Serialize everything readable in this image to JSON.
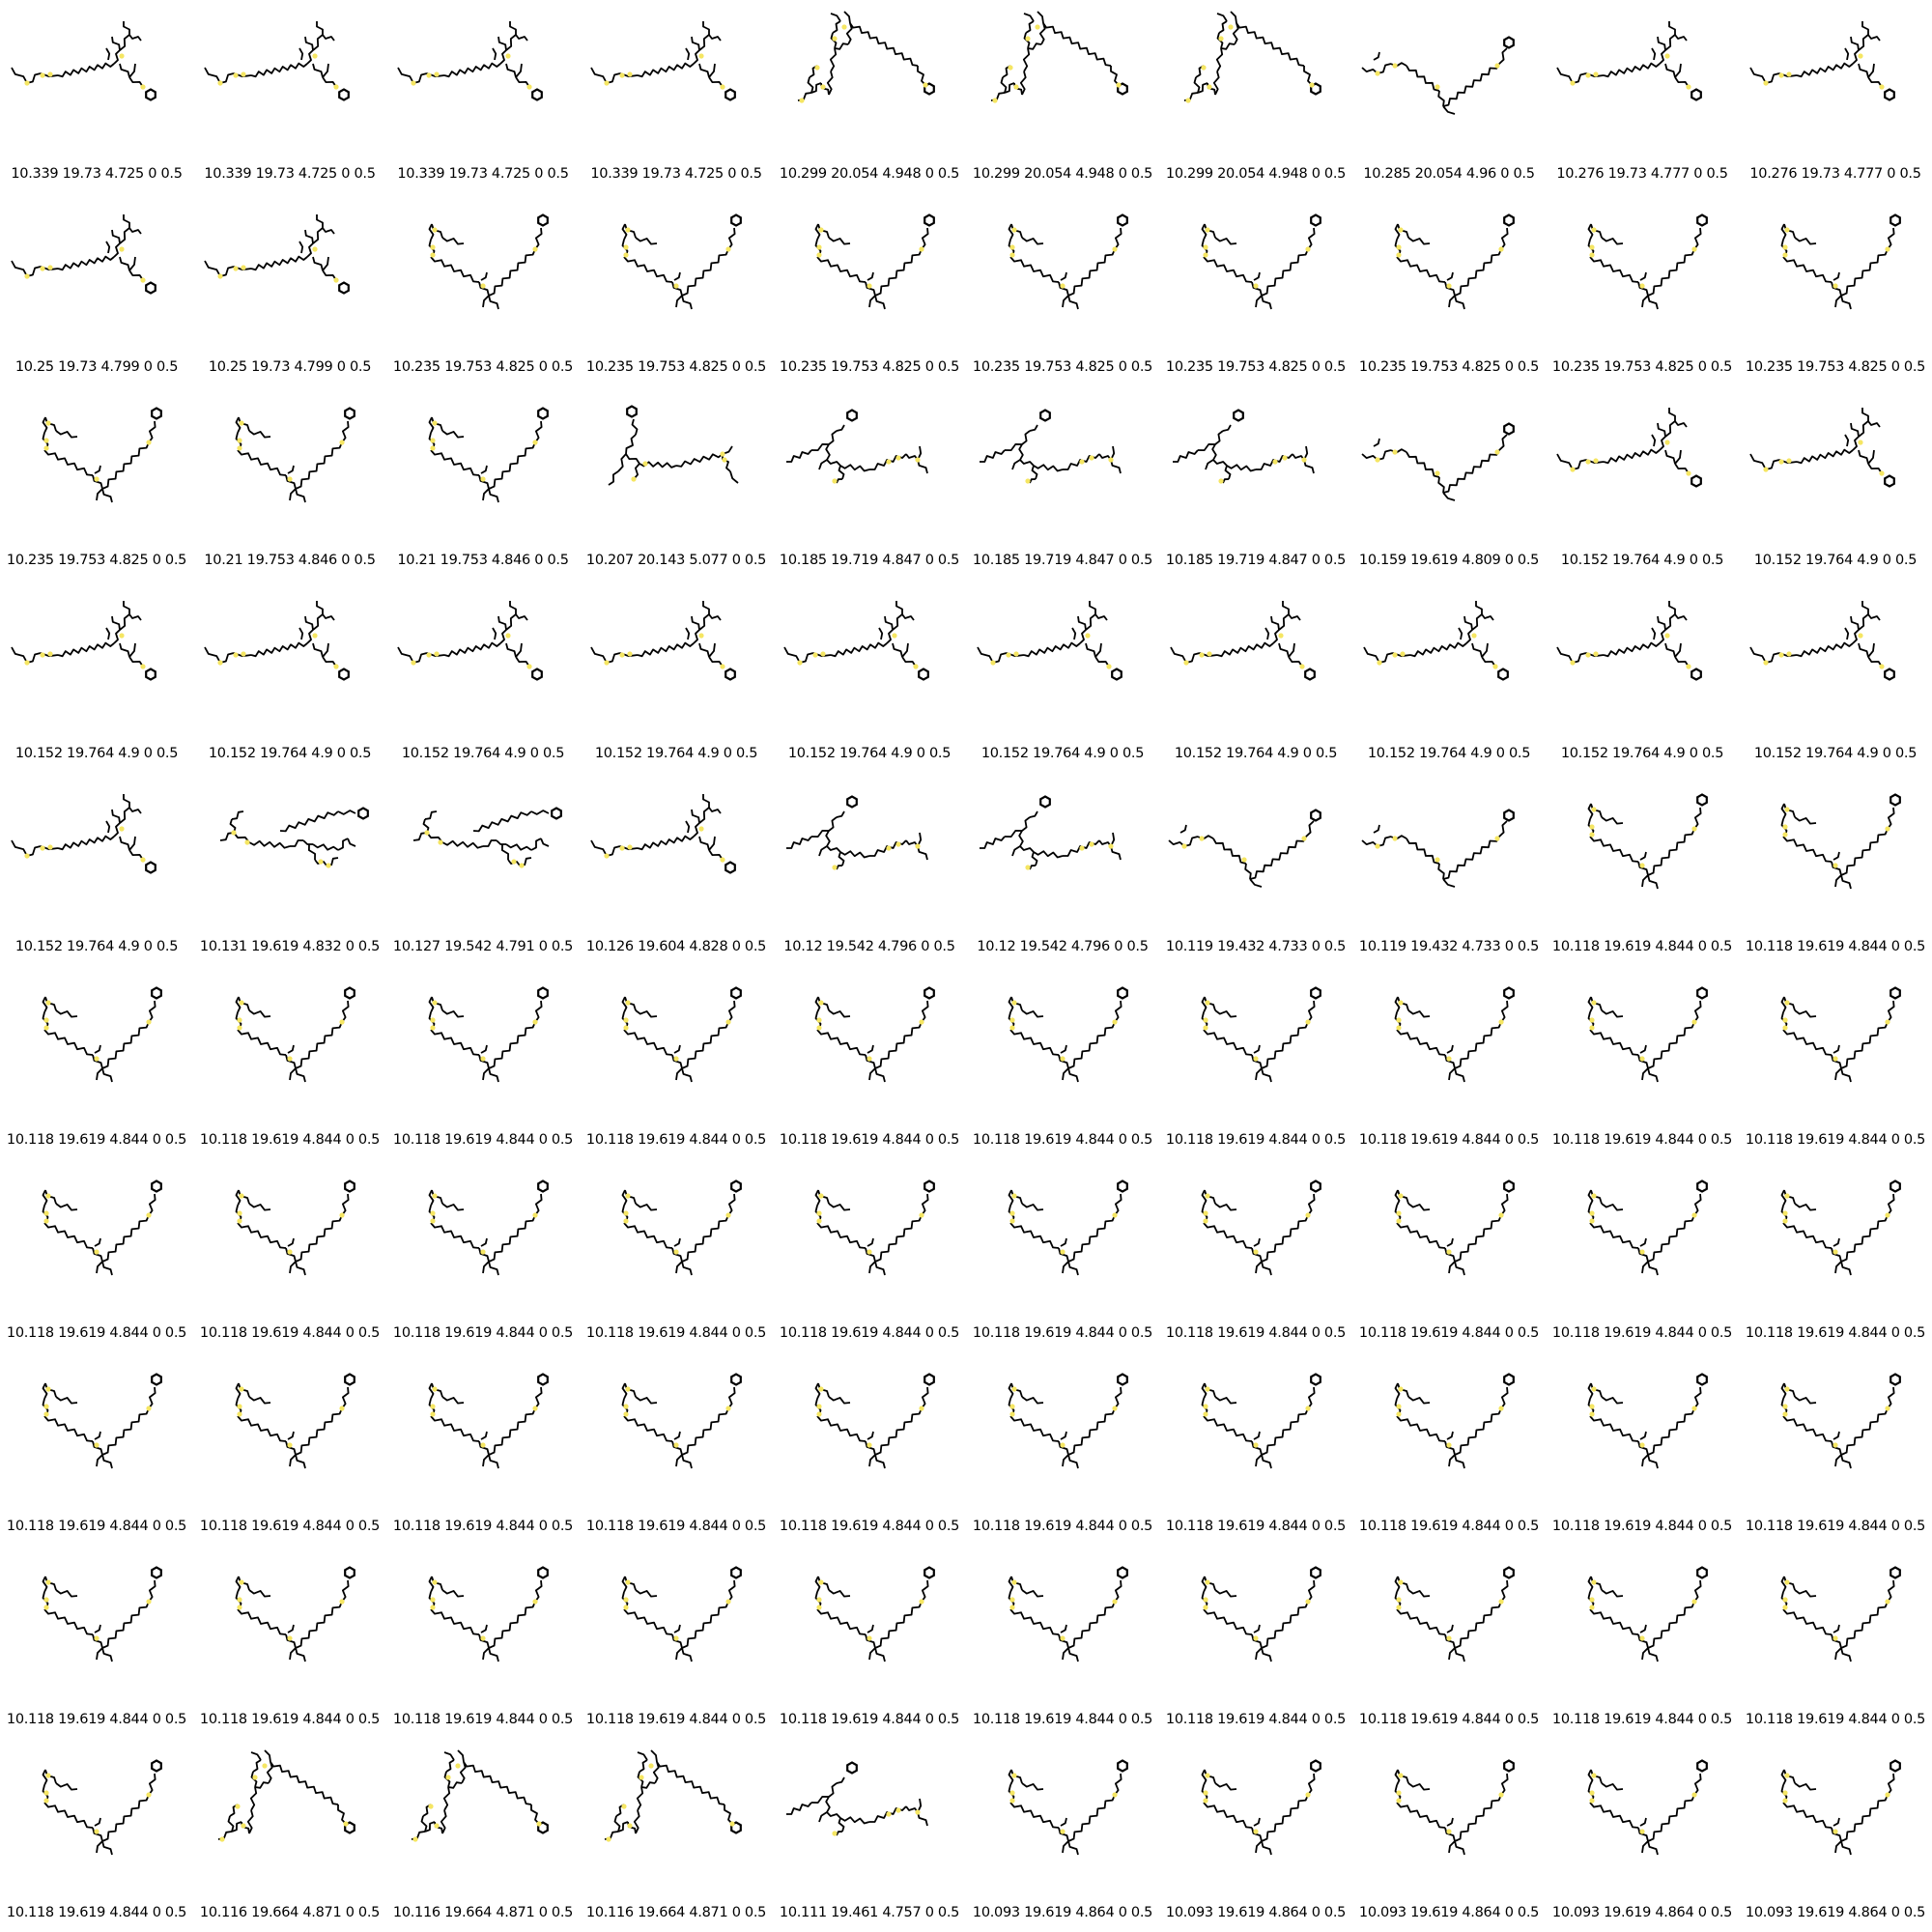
{
  "colors": {
    "bond": "#000000",
    "heteroatom": "#f5e663"
  },
  "items": [
    {
      "shape": "A",
      "label": "10.339 19.73 4.725 0 0.5"
    },
    {
      "shape": "A",
      "label": "10.339 19.73 4.725 0 0.5"
    },
    {
      "shape": "A",
      "label": "10.339 19.73 4.725 0 0.5"
    },
    {
      "shape": "A",
      "label": "10.339 19.73 4.725 0 0.5"
    },
    {
      "shape": "C",
      "label": "10.299 20.054 4.948 0 0.5"
    },
    {
      "shape": "C",
      "label": "10.299 20.054 4.948 0 0.5"
    },
    {
      "shape": "C",
      "label": "10.299 20.054 4.948 0 0.5"
    },
    {
      "shape": "D",
      "label": "10.285 20.054 4.96 0 0.5"
    },
    {
      "shape": "A",
      "label": "10.276 19.73 4.777 0 0.5"
    },
    {
      "shape": "A",
      "label": "10.276 19.73 4.777 0 0.5"
    },
    {
      "shape": "A",
      "label": "10.25 19.73 4.799 0 0.5"
    },
    {
      "shape": "A",
      "label": "10.25 19.73 4.799 0 0.5"
    },
    {
      "shape": "B",
      "label": "10.235 19.753 4.825 0 0.5"
    },
    {
      "shape": "B",
      "label": "10.235 19.753 4.825 0 0.5"
    },
    {
      "shape": "B",
      "label": "10.235 19.753 4.825 0 0.5"
    },
    {
      "shape": "B",
      "label": "10.235 19.753 4.825 0 0.5"
    },
    {
      "shape": "B",
      "label": "10.235 19.753 4.825 0 0.5"
    },
    {
      "shape": "B",
      "label": "10.235 19.753 4.825 0 0.5"
    },
    {
      "shape": "B",
      "label": "10.235 19.753 4.825 0 0.5"
    },
    {
      "shape": "B",
      "label": "10.235 19.753 4.825 0 0.5"
    },
    {
      "shape": "B",
      "label": "10.235 19.753 4.825 0 0.5"
    },
    {
      "shape": "B",
      "label": "10.21 19.753 4.846 0 0.5"
    },
    {
      "shape": "B",
      "label": "10.21 19.753 4.846 0 0.5"
    },
    {
      "shape": "E",
      "label": "10.207 20.143 5.077 0 0.5"
    },
    {
      "shape": "F",
      "label": "10.185 19.719 4.847 0 0.5"
    },
    {
      "shape": "F",
      "label": "10.185 19.719 4.847 0 0.5"
    },
    {
      "shape": "F",
      "label": "10.185 19.719 4.847 0 0.5"
    },
    {
      "shape": "D",
      "label": "10.159 19.619 4.809 0 0.5"
    },
    {
      "shape": "A",
      "label": "10.152 19.764 4.9 0 0.5"
    },
    {
      "shape": "A",
      "label": "10.152 19.764 4.9 0 0.5"
    },
    {
      "shape": "A",
      "label": "10.152 19.764 4.9 0 0.5"
    },
    {
      "shape": "A",
      "label": "10.152 19.764 4.9 0 0.5"
    },
    {
      "shape": "A",
      "label": "10.152 19.764 4.9 0 0.5"
    },
    {
      "shape": "A",
      "label": "10.152 19.764 4.9 0 0.5"
    },
    {
      "shape": "A",
      "label": "10.152 19.764 4.9 0 0.5"
    },
    {
      "shape": "A",
      "label": "10.152 19.764 4.9 0 0.5"
    },
    {
      "shape": "A",
      "label": "10.152 19.764 4.9 0 0.5"
    },
    {
      "shape": "A",
      "label": "10.152 19.764 4.9 0 0.5"
    },
    {
      "shape": "A",
      "label": "10.152 19.764 4.9 0 0.5"
    },
    {
      "shape": "A",
      "label": "10.152 19.764 4.9 0 0.5"
    },
    {
      "shape": "A",
      "label": "10.152 19.764 4.9 0 0.5"
    },
    {
      "shape": "G",
      "label": "10.131 19.619 4.832 0 0.5"
    },
    {
      "shape": "G",
      "label": "10.127 19.542 4.791 0 0.5"
    },
    {
      "shape": "A",
      "label": "10.126 19.604 4.828 0 0.5"
    },
    {
      "shape": "F",
      "label": "10.12 19.542 4.796 0 0.5"
    },
    {
      "shape": "F",
      "label": "10.12 19.542 4.796 0 0.5"
    },
    {
      "shape": "D",
      "label": "10.119 19.432 4.733 0 0.5"
    },
    {
      "shape": "D",
      "label": "10.119 19.432 4.733 0 0.5"
    },
    {
      "shape": "B",
      "label": "10.118 19.619 4.844 0 0.5"
    },
    {
      "shape": "B",
      "label": "10.118 19.619 4.844 0 0.5"
    },
    {
      "shape": "B",
      "label": "10.118 19.619 4.844 0 0.5"
    },
    {
      "shape": "B",
      "label": "10.118 19.619 4.844 0 0.5"
    },
    {
      "shape": "B",
      "label": "10.118 19.619 4.844 0 0.5"
    },
    {
      "shape": "B",
      "label": "10.118 19.619 4.844 0 0.5"
    },
    {
      "shape": "B",
      "label": "10.118 19.619 4.844 0 0.5"
    },
    {
      "shape": "B",
      "label": "10.118 19.619 4.844 0 0.5"
    },
    {
      "shape": "B",
      "label": "10.118 19.619 4.844 0 0.5"
    },
    {
      "shape": "B",
      "label": "10.118 19.619 4.844 0 0.5"
    },
    {
      "shape": "B",
      "label": "10.118 19.619 4.844 0 0.5"
    },
    {
      "shape": "B",
      "label": "10.118 19.619 4.844 0 0.5"
    },
    {
      "shape": "B",
      "label": "10.118 19.619 4.844 0 0.5"
    },
    {
      "shape": "B",
      "label": "10.118 19.619 4.844 0 0.5"
    },
    {
      "shape": "B",
      "label": "10.118 19.619 4.844 0 0.5"
    },
    {
      "shape": "B",
      "label": "10.118 19.619 4.844 0 0.5"
    },
    {
      "shape": "B",
      "label": "10.118 19.619 4.844 0 0.5"
    },
    {
      "shape": "B",
      "label": "10.118 19.619 4.844 0 0.5"
    },
    {
      "shape": "B",
      "label": "10.118 19.619 4.844 0 0.5"
    },
    {
      "shape": "B",
      "label": "10.118 19.619 4.844 0 0.5"
    },
    {
      "shape": "B",
      "label": "10.118 19.619 4.844 0 0.5"
    },
    {
      "shape": "B",
      "label": "10.118 19.619 4.844 0 0.5"
    },
    {
      "shape": "B",
      "label": "10.118 19.619 4.844 0 0.5"
    },
    {
      "shape": "B",
      "label": "10.118 19.619 4.844 0 0.5"
    },
    {
      "shape": "B",
      "label": "10.118 19.619 4.844 0 0.5"
    },
    {
      "shape": "B",
      "label": "10.118 19.619 4.844 0 0.5"
    },
    {
      "shape": "B",
      "label": "10.118 19.619 4.844 0 0.5"
    },
    {
      "shape": "B",
      "label": "10.118 19.619 4.844 0 0.5"
    },
    {
      "shape": "B",
      "label": "10.118 19.619 4.844 0 0.5"
    },
    {
      "shape": "B",
      "label": "10.118 19.619 4.844 0 0.5"
    },
    {
      "shape": "B",
      "label": "10.118 19.619 4.844 0 0.5"
    },
    {
      "shape": "B",
      "label": "10.118 19.619 4.844 0 0.5"
    },
    {
      "shape": "B",
      "label": "10.118 19.619 4.844 0 0.5"
    },
    {
      "shape": "B",
      "label": "10.118 19.619 4.844 0 0.5"
    },
    {
      "shape": "B",
      "label": "10.118 19.619 4.844 0 0.5"
    },
    {
      "shape": "B",
      "label": "10.118 19.619 4.844 0 0.5"
    },
    {
      "shape": "B",
      "label": "10.118 19.619 4.844 0 0.5"
    },
    {
      "shape": "B",
      "label": "10.118 19.619 4.844 0 0.5"
    },
    {
      "shape": "B",
      "label": "10.118 19.619 4.844 0 0.5"
    },
    {
      "shape": "B",
      "label": "10.118 19.619 4.844 0 0.5"
    },
    {
      "shape": "B",
      "label": "10.118 19.619 4.844 0 0.5"
    },
    {
      "shape": "B",
      "label": "10.118 19.619 4.844 0 0.5"
    },
    {
      "shape": "B",
      "label": "10.118 19.619 4.844 0 0.5"
    },
    {
      "shape": "C",
      "label": "10.116 19.664 4.871 0 0.5"
    },
    {
      "shape": "C",
      "label": "10.116 19.664 4.871 0 0.5"
    },
    {
      "shape": "C",
      "label": "10.116 19.664 4.871 0 0.5"
    },
    {
      "shape": "F",
      "label": "10.111 19.461 4.757 0 0.5"
    },
    {
      "shape": "B",
      "label": "10.093 19.619 4.864 0 0.5"
    },
    {
      "shape": "B",
      "label": "10.093 19.619 4.864 0 0.5"
    },
    {
      "shape": "B",
      "label": "10.093 19.619 4.864 0 0.5"
    },
    {
      "shape": "B",
      "label": "10.093 19.619 4.864 0 0.5"
    },
    {
      "shape": "B",
      "label": "10.093 19.619 4.864 0 0.5"
    }
  ]
}
